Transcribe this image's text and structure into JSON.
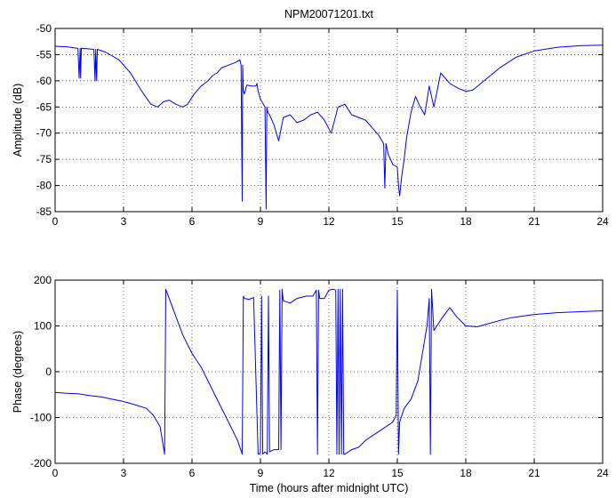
{
  "chart_data": [
    {
      "type": "line",
      "title": "NPM20071201.txt",
      "xlabel": "",
      "ylabel": "Amplitude (dB)",
      "xlim": [
        0,
        24
      ],
      "ylim": [
        -85,
        -50
      ],
      "xticks": [
        0,
        3,
        6,
        9,
        12,
        15,
        18,
        21,
        24
      ],
      "yticks": [
        -85,
        -80,
        -75,
        -70,
        -65,
        -60,
        -55,
        -50
      ],
      "grid": true,
      "line_color": "#0000ff",
      "x": [
        0,
        0.5,
        1.0,
        1.05,
        1.1,
        1.12,
        1.15,
        1.2,
        1.5,
        1.7,
        1.75,
        1.78,
        1.82,
        1.85,
        2.2,
        2.8,
        3.3,
        3.8,
        4.2,
        4.5,
        4.75,
        5.0,
        5.3,
        5.6,
        5.8,
        6.1,
        6.4,
        6.7,
        6.9,
        7.1,
        7.3,
        7.6,
        7.9,
        8.1,
        8.15,
        8.2,
        8.22,
        8.25,
        8.3,
        8.4,
        8.6,
        8.8,
        8.85,
        8.9,
        9.0,
        9.2,
        9.25,
        9.28,
        9.32,
        9.4,
        9.6,
        9.8,
        10.0,
        10.3,
        10.6,
        10.9,
        11.2,
        11.5,
        11.8,
        12.1,
        12.4,
        12.7,
        13.0,
        13.3,
        13.6,
        13.9,
        14.2,
        14.4,
        14.45,
        14.5,
        14.6,
        14.8,
        15.0,
        15.05,
        15.1,
        15.2,
        15.3,
        15.4,
        15.6,
        15.8,
        16.0,
        16.2,
        16.4,
        16.6,
        16.9,
        17.3,
        17.7,
        18.0,
        18.3,
        18.8,
        19.5,
        20.2,
        21.0,
        22.0,
        23.0,
        24.0
      ],
      "y": [
        -53.4,
        -53.5,
        -53.8,
        -59.5,
        -53.8,
        -59.5,
        -53.8,
        -53.8,
        -53.9,
        -54.0,
        -60.0,
        -54.0,
        -60.0,
        -54.0,
        -54.5,
        -56.0,
        -58.5,
        -62.0,
        -64.5,
        -65.0,
        -64.0,
        -63.7,
        -64.5,
        -65.0,
        -64.5,
        -62.5,
        -61.0,
        -60.0,
        -59.0,
        -58.5,
        -57.5,
        -57.0,
        -56.5,
        -56.0,
        -57.0,
        -83.0,
        -57.0,
        -62.0,
        -62.5,
        -60.8,
        -61.0,
        -61.0,
        -60.5,
        -62.0,
        -63.5,
        -65.0,
        -84.5,
        -65.0,
        -66.0,
        -66.5,
        -68.5,
        -71.5,
        -67.0,
        -66.5,
        -68.0,
        -67.5,
        -66.5,
        -66.0,
        -67.5,
        -70.0,
        -65.0,
        -64.5,
        -66.5,
        -67.0,
        -67.5,
        -69.0,
        -70.5,
        -72.0,
        -80.5,
        -72.0,
        -74.0,
        -76.0,
        -76.5,
        -80.0,
        -82.0,
        -78.0,
        -75.0,
        -71.0,
        -66.0,
        -63.0,
        -65.0,
        -66.5,
        -61.0,
        -65.0,
        -58.5,
        -60.5,
        -61.5,
        -62.0,
        -61.8,
        -60.0,
        -57.5,
        -55.5,
        -54.3,
        -53.6,
        -53.3,
        -53.2
      ]
    },
    {
      "type": "line",
      "title": "",
      "xlabel": "Time (hours after midnight UTC)",
      "ylabel": "Phase (degrees)",
      "xlim": [
        0,
        24
      ],
      "ylim": [
        -200,
        200
      ],
      "xticks": [
        0,
        3,
        6,
        9,
        12,
        15,
        18,
        21,
        24
      ],
      "yticks": [
        -200,
        -100,
        0,
        100,
        200
      ],
      "grid": true,
      "line_color": "#0000ff",
      "x": [
        0,
        0.5,
        1.0,
        1.5,
        2.0,
        2.5,
        3.0,
        3.5,
        4.0,
        4.3,
        4.6,
        4.8,
        4.85,
        5.0,
        5.3,
        5.6,
        6.0,
        6.4,
        6.8,
        7.2,
        7.6,
        8.0,
        8.2,
        8.25,
        8.3,
        8.5,
        8.7,
        8.9,
        9.0,
        9.05,
        9.1,
        9.2,
        9.3,
        9.35,
        9.4,
        9.6,
        9.8,
        9.85,
        9.9,
        9.95,
        10.0,
        10.3,
        10.6,
        11.0,
        11.3,
        11.45,
        11.5,
        11.55,
        11.6,
        11.8,
        12.0,
        12.2,
        12.3,
        12.35,
        12.4,
        12.45,
        12.5,
        12.55,
        12.6,
        12.65,
        12.7,
        13.0,
        13.3,
        13.6,
        13.9,
        14.2,
        14.5,
        14.8,
        14.95,
        15.0,
        15.05,
        15.1,
        15.3,
        15.6,
        15.9,
        16.1,
        16.3,
        16.4,
        16.45,
        16.5,
        16.6,
        16.8,
        17.0,
        17.3,
        17.6,
        18.0,
        18.5,
        19.0,
        19.5,
        20.0,
        21.0,
        22.0,
        23.0,
        24.0
      ],
      "y": [
        -45,
        -47,
        -48,
        -52,
        -55,
        -60,
        -65,
        -72,
        -80,
        -95,
        -120,
        -180,
        180,
        160,
        120,
        80,
        40,
        10,
        -30,
        -70,
        -110,
        -150,
        -180,
        165,
        160,
        158,
        162,
        -180,
        -178,
        165,
        -180,
        -175,
        -180,
        165,
        -175,
        -170,
        -170,
        178,
        -170,
        180,
        155,
        150,
        160,
        165,
        165,
        178,
        -180,
        178,
        160,
        160,
        178,
        180,
        178,
        -180,
        180,
        -180,
        180,
        -180,
        180,
        -180,
        -180,
        -170,
        -165,
        -150,
        -140,
        -130,
        -120,
        -110,
        -95,
        178,
        -180,
        -110,
        -80,
        -60,
        -20,
        40,
        100,
        160,
        -180,
        180,
        90,
        105,
        120,
        140,
        120,
        100,
        98,
        105,
        112,
        118,
        125,
        129,
        131,
        133
      ]
    }
  ]
}
